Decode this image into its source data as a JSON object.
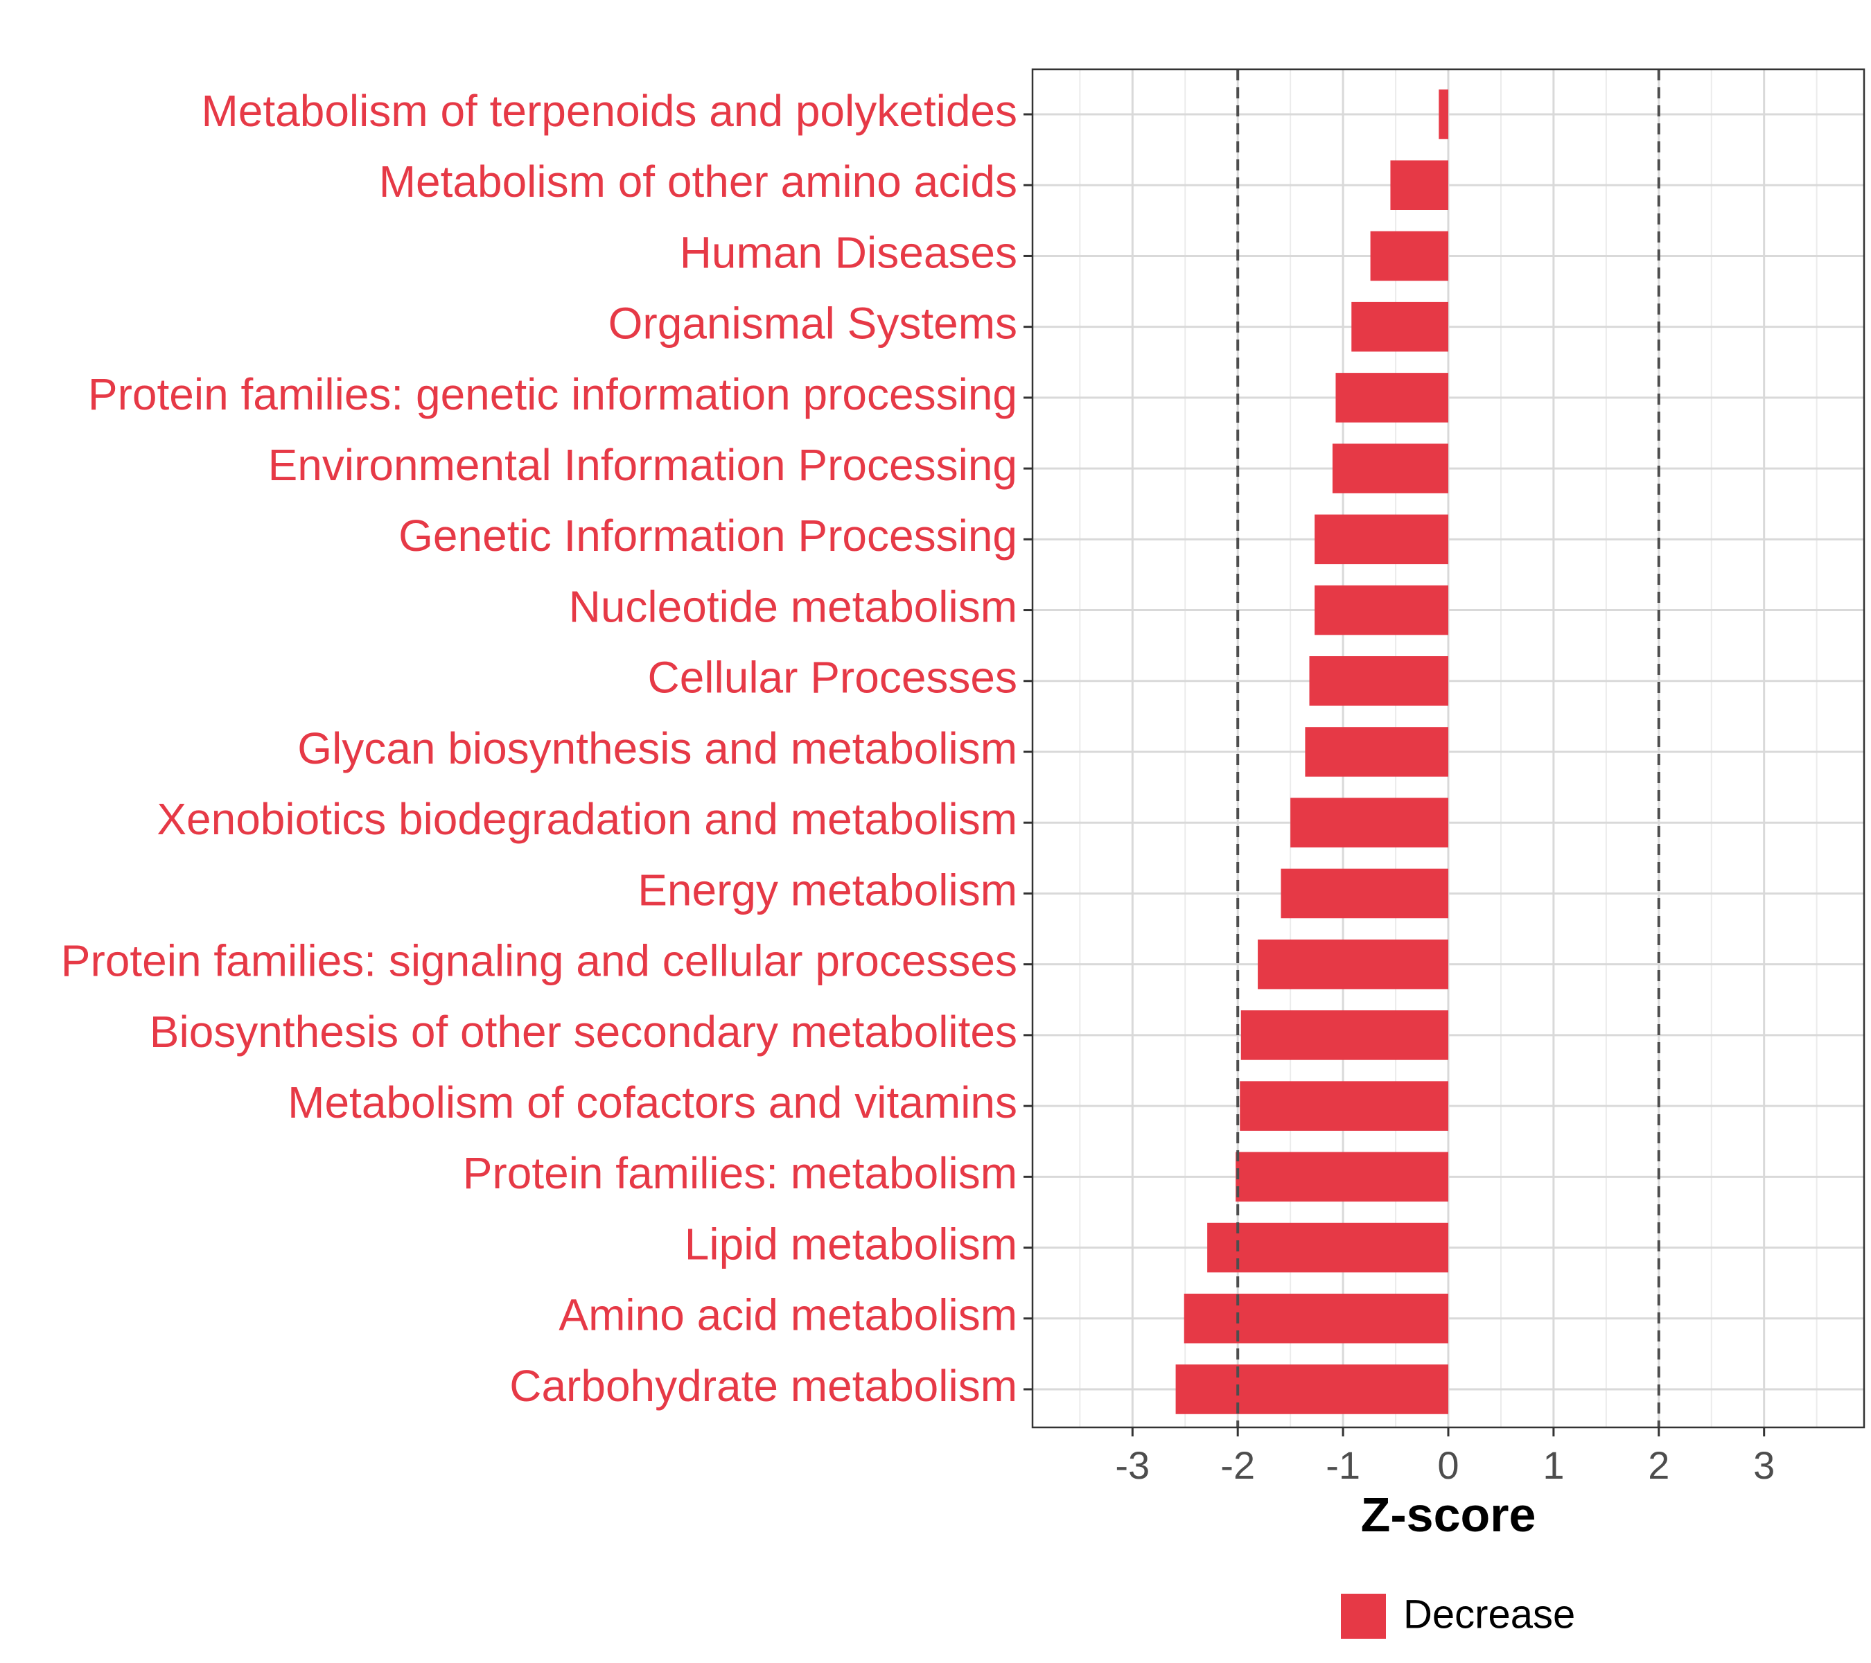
{
  "chart_data": {
    "type": "bar",
    "orientation": "horizontal",
    "categories": [
      "Metabolism of terpenoids and polyketides",
      "Metabolism of other amino acids",
      "Human Diseases",
      "Organismal Systems",
      "Protein families: genetic information processing",
      "Environmental Information Processing",
      "Genetic Information Processing",
      "Nucleotide metabolism",
      "Cellular Processes",
      "Glycan biosynthesis and metabolism",
      "Xenobiotics biodegradation and metabolism",
      "Energy metabolism",
      "Protein families: signaling and cellular processes",
      "Biosynthesis of other secondary metabolites",
      "Metabolism of cofactors and vitamins",
      "Protein families: metabolism",
      "Lipid metabolism",
      "Amino acid metabolism",
      "Carbohydrate metabolism"
    ],
    "series": [
      {
        "name": "Decrease",
        "color": "#e63946",
        "values": [
          -0.09,
          -0.55,
          -0.74,
          -0.92,
          -1.07,
          -1.1,
          -1.27,
          -1.27,
          -1.32,
          -1.36,
          -1.5,
          -1.59,
          -1.81,
          -1.97,
          -1.98,
          -2.02,
          -2.29,
          -2.51,
          -2.59
        ]
      }
    ],
    "xlabel": "Z-score",
    "ylabel": "",
    "xlim": [
      -3.95,
      3.95
    ],
    "xticks": [
      "-3",
      "-2",
      "-1",
      "0",
      "1",
      "2",
      "3"
    ],
    "xtick_values": [
      -3,
      -2,
      -1,
      0,
      1,
      2,
      3
    ],
    "reference_lines": [
      -2,
      2
    ],
    "grid": true,
    "legend_position": "bottom",
    "label_color": "#e63946"
  }
}
